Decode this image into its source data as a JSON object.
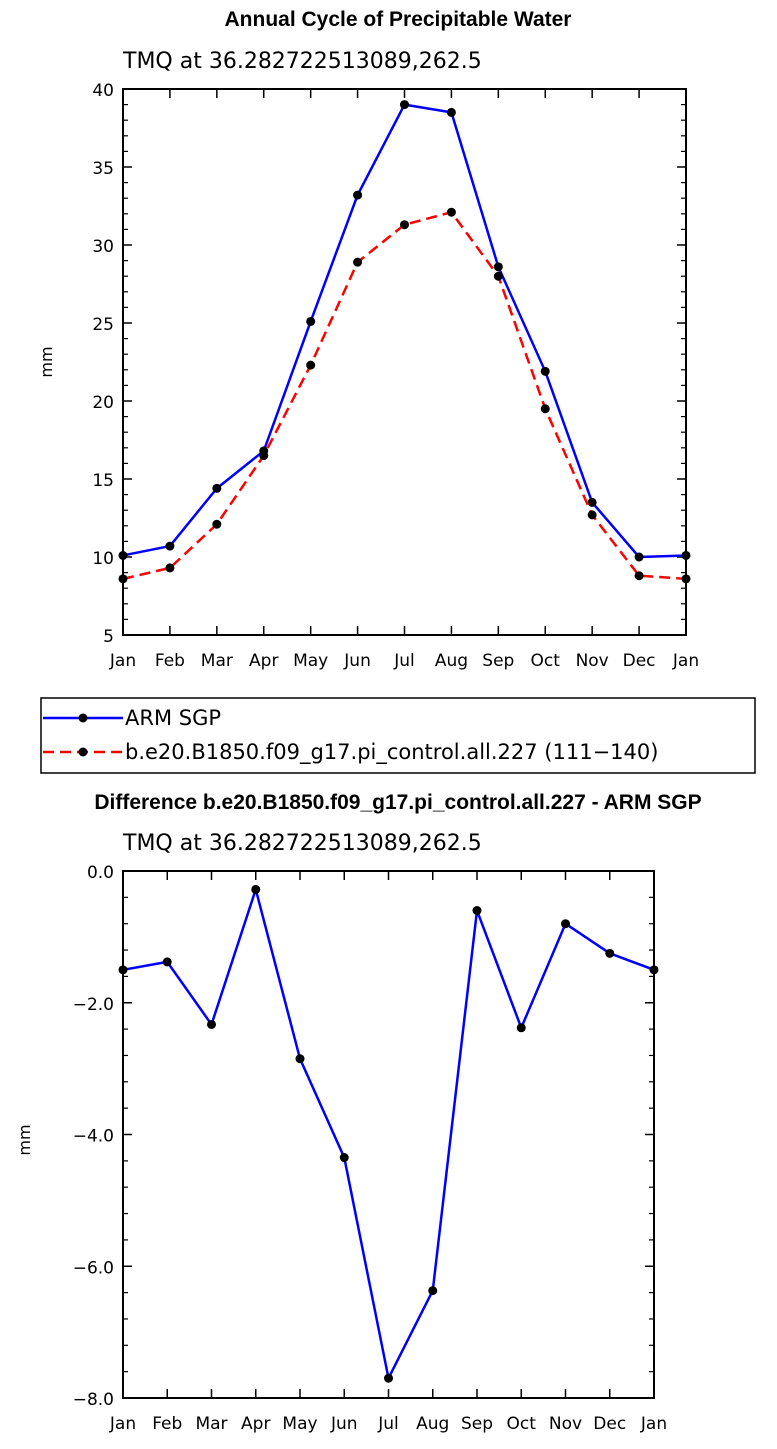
{
  "colors": {
    "obs": "#0000ff",
    "model": "#ff0000",
    "marker": "#000000",
    "frame": "#000000"
  },
  "chart_data": [
    {
      "type": "line",
      "title": "Annual Cycle of Precipitable Water",
      "subtitle": "TMQ at 36.282722513089,262.5",
      "xlabel": "",
      "ylabel": "mm",
      "categories": [
        "Jan",
        "Feb",
        "Mar",
        "Apr",
        "May",
        "Jun",
        "Jul",
        "Aug",
        "Sep",
        "Oct",
        "Nov",
        "Dec",
        "Jan"
      ],
      "ylim": [
        5,
        40
      ],
      "yticks": [
        5,
        10,
        15,
        20,
        25,
        30,
        35,
        40
      ],
      "yticklabels": [
        "5",
        "10",
        "15",
        "20",
        "25",
        "30",
        "35",
        "40"
      ],
      "grid": false,
      "series": [
        {
          "name": "ARM SGP",
          "color": "#0000ff",
          "dash": "solid",
          "values": [
            10.1,
            10.7,
            14.4,
            16.8,
            25.1,
            33.2,
            39.0,
            38.5,
            28.6,
            21.9,
            13.5,
            10.0,
            10.1
          ]
        },
        {
          "name": "b.e20.B1850.f09_g17.pi_control.all.227 (111−140)",
          "color": "#ff0000",
          "dash": "dashed",
          "values": [
            8.6,
            9.3,
            12.1,
            16.5,
            22.3,
            28.9,
            31.3,
            32.1,
            28.0,
            19.5,
            12.7,
            8.8,
            8.6
          ]
        }
      ]
    },
    {
      "type": "line",
      "title": "Difference b.e20.B1850.f09_g17.pi_control.all.227 - ARM SGP",
      "subtitle": "TMQ at 36.282722513089,262.5",
      "xlabel": "",
      "ylabel": "mm",
      "categories": [
        "Jan",
        "Feb",
        "Mar",
        "Apr",
        "May",
        "Jun",
        "Jul",
        "Aug",
        "Sep",
        "Oct",
        "Nov",
        "Dec",
        "Jan"
      ],
      "ylim": [
        -8.0,
        0.0
      ],
      "yticks": [
        -8,
        -6,
        -4,
        -2,
        0
      ],
      "yticklabels": [
        "−8.0",
        "−6.0",
        "−4.0",
        "−2.0",
        "0.0"
      ],
      "grid": false,
      "series": [
        {
          "color": "#0000ff",
          "dash": "solid",
          "values": [
            -1.5,
            -1.38,
            -2.33,
            -0.28,
            -2.85,
            -4.35,
            -7.7,
            -6.37,
            -0.6,
            -2.38,
            -0.8,
            -1.25,
            -1.5
          ]
        }
      ]
    }
  ]
}
